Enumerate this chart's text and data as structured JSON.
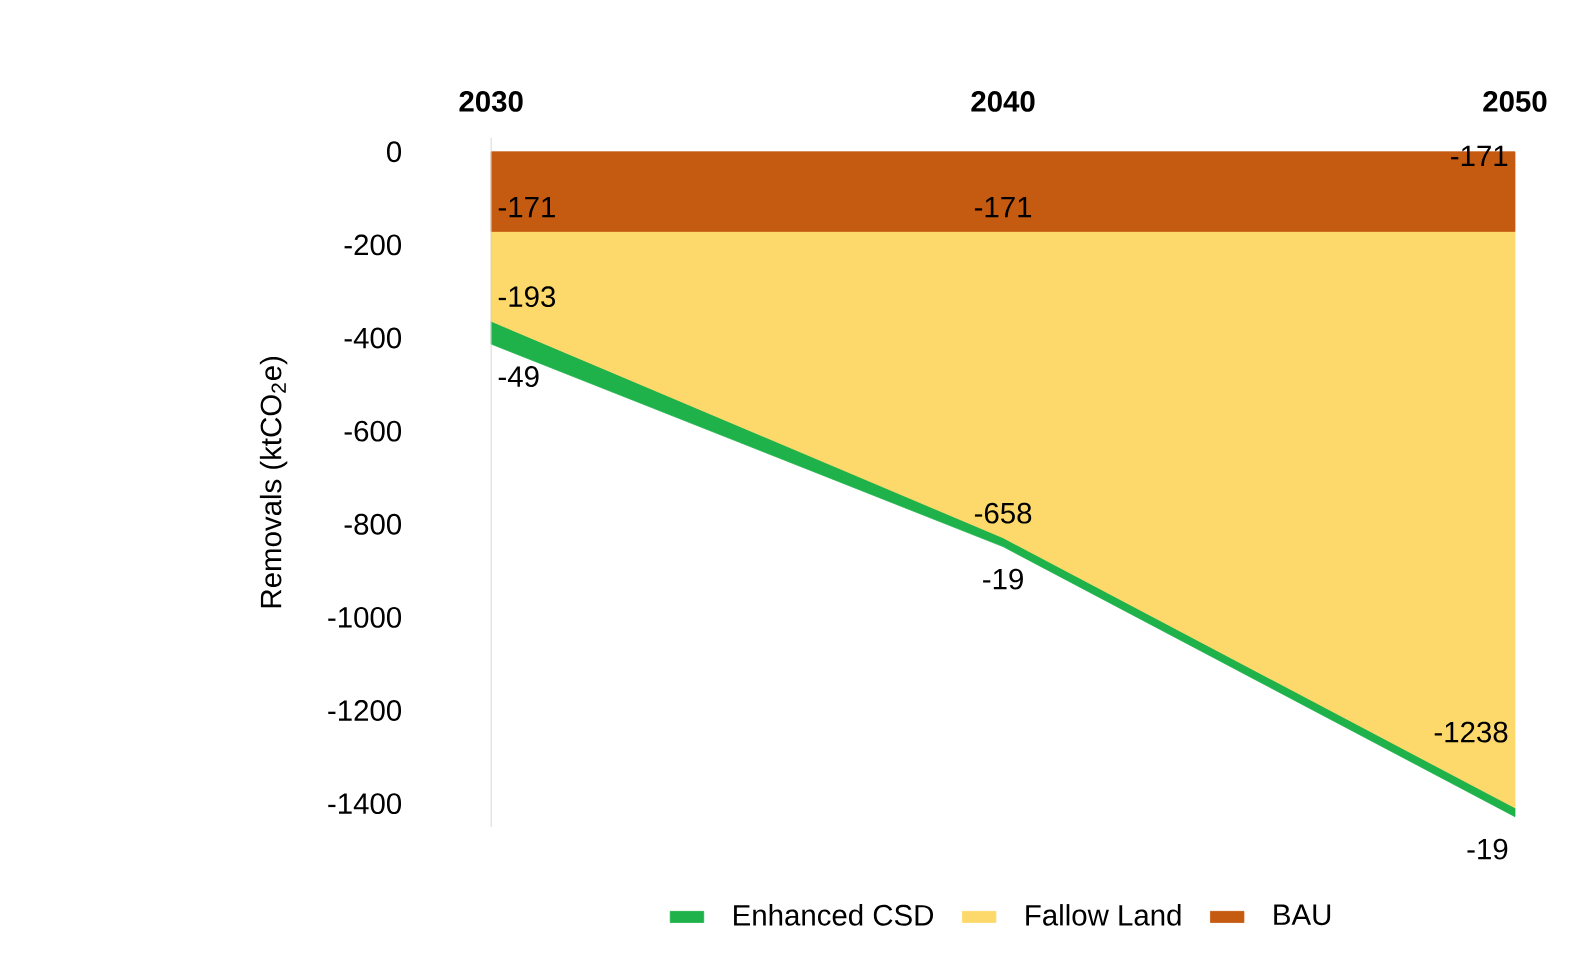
{
  "chart_data": {
    "type": "area",
    "stacked": true,
    "ylabel": "Removals (ktCO$_{2}$e)",
    "x": [
      2030,
      2040,
      2050
    ],
    "xlim": [
      2030,
      2050
    ],
    "xticks": [
      2030,
      2040,
      2050
    ],
    "ylim": [
      -1450,
      30
    ],
    "yticks": [
      0,
      -200,
      -400,
      -600,
      -800,
      -1000,
      -1200,
      -1400
    ],
    "data_labels": true,
    "legend": "bottom",
    "series": [
      {
        "name": "BAU",
        "color": "#c55a11",
        "values": [
          -171,
          -171,
          -171
        ]
      },
      {
        "name": "Fallow Land",
        "color": "#fdd96b",
        "values": [
          -193,
          -658,
          -1238
        ]
      },
      {
        "name": "Enhanced CSD",
        "color": "#1fb24a",
        "values": [
          -49,
          -19,
          -19
        ]
      }
    ]
  }
}
